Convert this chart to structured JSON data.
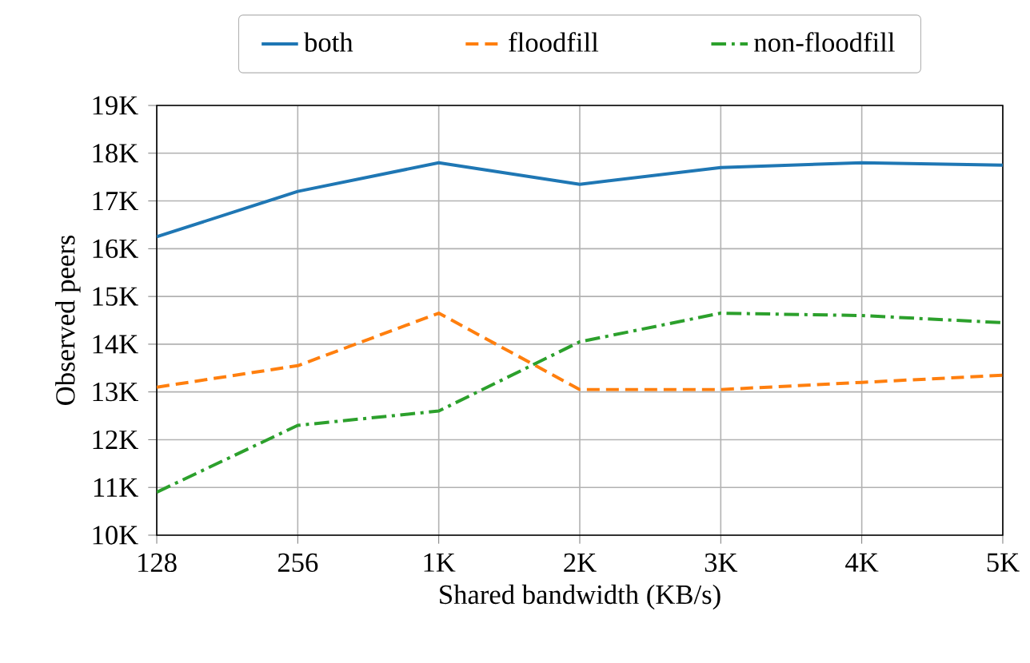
{
  "chart_data": {
    "type": "line",
    "xlabel": "Shared bandwidth (KB/s)",
    "ylabel": "Observed peers",
    "categories": [
      "128",
      "256",
      "1K",
      "2K",
      "3K",
      "4K",
      "5K"
    ],
    "series": [
      {
        "name": "both",
        "color": "#1f77b4",
        "line_style": "solid",
        "values": [
          16250,
          17200,
          17800,
          17350,
          17700,
          17800,
          17750
        ]
      },
      {
        "name": "floodfill",
        "color": "#ff7f0e",
        "line_style": "dashed",
        "values": [
          13100,
          13550,
          14650,
          13050,
          13050,
          13200,
          13350
        ]
      },
      {
        "name": "non-floodfill",
        "color": "#2ca02c",
        "line_style": "dashdot",
        "values": [
          10900,
          12300,
          12600,
          14050,
          14650,
          14600,
          14450
        ]
      }
    ],
    "ylim": [
      10000,
      19000
    ],
    "yticks": [
      {
        "value": 10000,
        "label": "10K"
      },
      {
        "value": 11000,
        "label": "11K"
      },
      {
        "value": 12000,
        "label": "12K"
      },
      {
        "value": 13000,
        "label": "13K"
      },
      {
        "value": 14000,
        "label": "14K"
      },
      {
        "value": 15000,
        "label": "15K"
      },
      {
        "value": 16000,
        "label": "16K"
      },
      {
        "value": 17000,
        "label": "17K"
      },
      {
        "value": 18000,
        "label": "18K"
      },
      {
        "value": 19000,
        "label": "19K"
      }
    ],
    "grid": true,
    "legend": "top",
    "marker": "none"
  }
}
